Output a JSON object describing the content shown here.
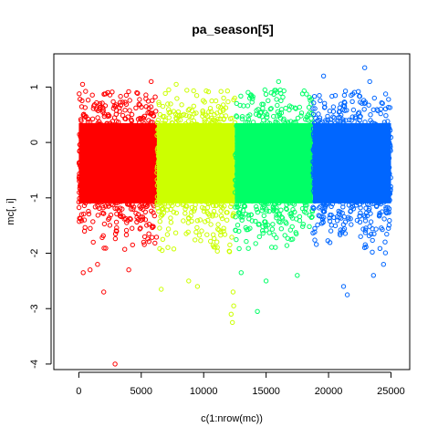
{
  "chart_data": {
    "type": "scatter",
    "title": "pa_season[5]",
    "xlabel": "c(1:nrow(mc))",
    "ylabel": "mc[, i]",
    "xlim": [
      -2000,
      26500
    ],
    "ylim": [
      -4.1,
      1.6
    ],
    "xticks": [
      0,
      5000,
      10000,
      15000,
      20000,
      25000
    ],
    "yticks": [
      -4,
      -3,
      -2,
      -1,
      0,
      1
    ],
    "xtick_labels": [
      "0",
      "5000",
      "10000",
      "15000",
      "20000",
      "25000"
    ],
    "ytick_labels": [
      "-4",
      "-3",
      "-2",
      "-1",
      "0",
      "1"
    ],
    "grid": false,
    "legend": "none",
    "marker": "open-circle",
    "series": [
      {
        "color": "#ff0000",
        "x_range": [
          1,
          6250
        ],
        "dense_band": [
          -1.45,
          0.6
        ],
        "outliers": [
          {
            "x": 2900,
            "y": -4.0
          },
          {
            "x": 2000,
            "y": -2.7
          },
          {
            "x": 350,
            "y": -2.35
          },
          {
            "x": 900,
            "y": -2.3
          },
          {
            "x": 4000,
            "y": -2.3
          },
          {
            "x": 1500,
            "y": -2.2
          },
          {
            "x": 5800,
            "y": 1.1
          },
          {
            "x": 300,
            "y": 1.05
          }
        ]
      },
      {
        "color": "#ccff00",
        "x_range": [
          6251,
          12500
        ],
        "dense_band": [
          -1.45,
          0.6
        ],
        "outliers": [
          {
            "x": 12300,
            "y": -3.25
          },
          {
            "x": 12200,
            "y": -3.1
          },
          {
            "x": 12400,
            "y": -2.95
          },
          {
            "x": 12350,
            "y": -2.7
          },
          {
            "x": 6600,
            "y": -2.65
          },
          {
            "x": 9500,
            "y": -2.6
          },
          {
            "x": 8800,
            "y": -2.5
          },
          {
            "x": 7800,
            "y": 1.05
          },
          {
            "x": 7200,
            "y": 0.95
          }
        ]
      },
      {
        "color": "#00ff66",
        "x_range": [
          12501,
          18750
        ],
        "dense_band": [
          -1.45,
          0.6
        ],
        "outliers": [
          {
            "x": 14300,
            "y": -3.05
          },
          {
            "x": 15000,
            "y": -2.5
          },
          {
            "x": 13000,
            "y": -2.35
          },
          {
            "x": 17500,
            "y": -2.4
          },
          {
            "x": 16000,
            "y": 1.1
          },
          {
            "x": 14900,
            "y": 0.95
          }
        ]
      },
      {
        "color": "#0066ff",
        "x_range": [
          18751,
          25000
        ],
        "dense_band": [
          -1.45,
          0.6
        ],
        "outliers": [
          {
            "x": 21500,
            "y": -2.75
          },
          {
            "x": 21200,
            "y": -2.6
          },
          {
            "x": 23600,
            "y": -2.4
          },
          {
            "x": 24400,
            "y": -2.2
          },
          {
            "x": 22900,
            "y": 1.35
          },
          {
            "x": 19600,
            "y": 1.2
          },
          {
            "x": 23300,
            "y": 1.1
          }
        ]
      }
    ]
  }
}
